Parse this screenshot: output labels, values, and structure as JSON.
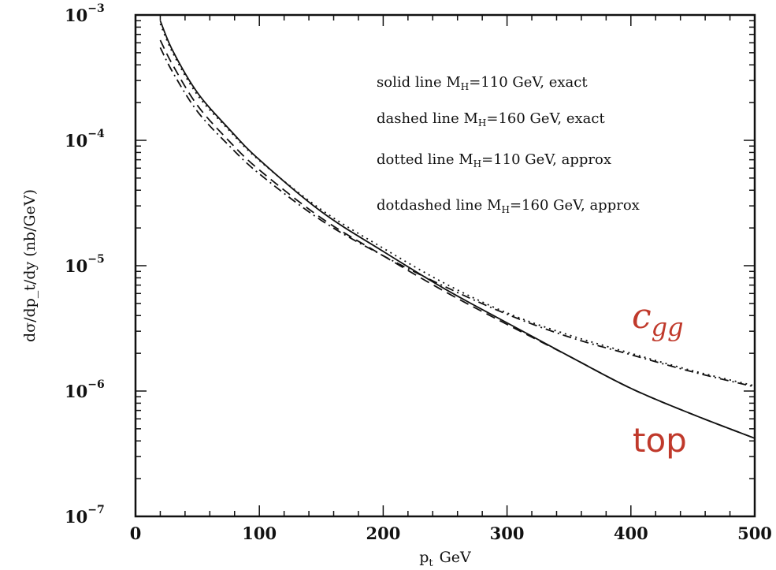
{
  "chart_data": {
    "type": "line",
    "xlabel": "p",
    "xlabel_sub": "t",
    "xlabel_unit": "GeV",
    "ylabel": "dσ/dp_t/dy  (nb/GeV)",
    "x_ticks": [
      "0",
      "100",
      "200",
      "300",
      "400",
      "500"
    ],
    "y_ticks": [
      {
        "base": "10",
        "exp": "−3"
      },
      {
        "base": "10",
        "exp": "−4"
      },
      {
        "base": "10",
        "exp": "−5"
      },
      {
        "base": "10",
        "exp": "−6"
      },
      {
        "base": "10",
        "exp": "−7"
      }
    ],
    "xlim": [
      0,
      500
    ],
    "ylim": [
      1e-07,
      0.001
    ],
    "yscale": "log",
    "legend": [
      {
        "pre": "solid line M",
        "sub": "H",
        "post": "=110 GeV, exact"
      },
      {
        "pre": "dashed line M",
        "sub": "H",
        "post": "=160 GeV, exact"
      },
      {
        "pre": "dotted line M",
        "sub": "H",
        "post": "=110 GeV, approx"
      },
      {
        "pre": "dotdashed line M",
        "sub": "H",
        "post": "=160 GeV, approx"
      }
    ],
    "annotations": {
      "cgg": "c",
      "cgg_sub": "gg",
      "top": "top",
      "color": "#c0392b"
    },
    "series": [
      {
        "style": "solid",
        "x": [
          20,
          30,
          50,
          75,
          100,
          150,
          200,
          250,
          300,
          350,
          400,
          450,
          500
        ],
        "y": [
          0.0009,
          0.00052,
          0.00024,
          0.000125,
          7e-05,
          2.7e-05,
          1.3e-05,
          6.5e-06,
          3.5e-06,
          1.9e-06,
          1.05e-06,
          6.5e-07,
          4.2e-07
        ]
      },
      {
        "style": "dashed",
        "x": [
          20,
          30,
          50,
          75,
          100,
          150,
          200,
          250,
          300,
          350,
          400,
          450,
          500
        ],
        "y": [
          0.00063,
          0.0004,
          0.00019,
          0.0001,
          5.8e-05,
          2.4e-05,
          1.2e-05,
          6.2e-06,
          3.4e-06,
          1.9e-06,
          1.05e-06,
          6.5e-07,
          4.2e-07
        ]
      },
      {
        "style": "dotted",
        "x": [
          20,
          30,
          50,
          75,
          100,
          150,
          200,
          250,
          300,
          350,
          400,
          450,
          500
        ],
        "y": [
          0.00085,
          0.0005,
          0.00023,
          0.000122,
          6.9e-05,
          2.8e-05,
          1.38e-05,
          7.2e-06,
          4.2e-06,
          2.8e-06,
          2e-06,
          1.45e-06,
          1.1e-06
        ]
      },
      {
        "style": "dotdashed",
        "x": [
          20,
          30,
          50,
          75,
          100,
          150,
          200,
          250,
          300,
          350,
          400,
          450,
          500
        ],
        "y": [
          0.00055,
          0.00035,
          0.00017,
          9.2e-05,
          5.4e-05,
          2.3e-05,
          1.2e-05,
          6.8e-06,
          4.1e-06,
          2.7e-06,
          1.95e-06,
          1.42e-06,
          1.08e-06
        ]
      }
    ]
  }
}
